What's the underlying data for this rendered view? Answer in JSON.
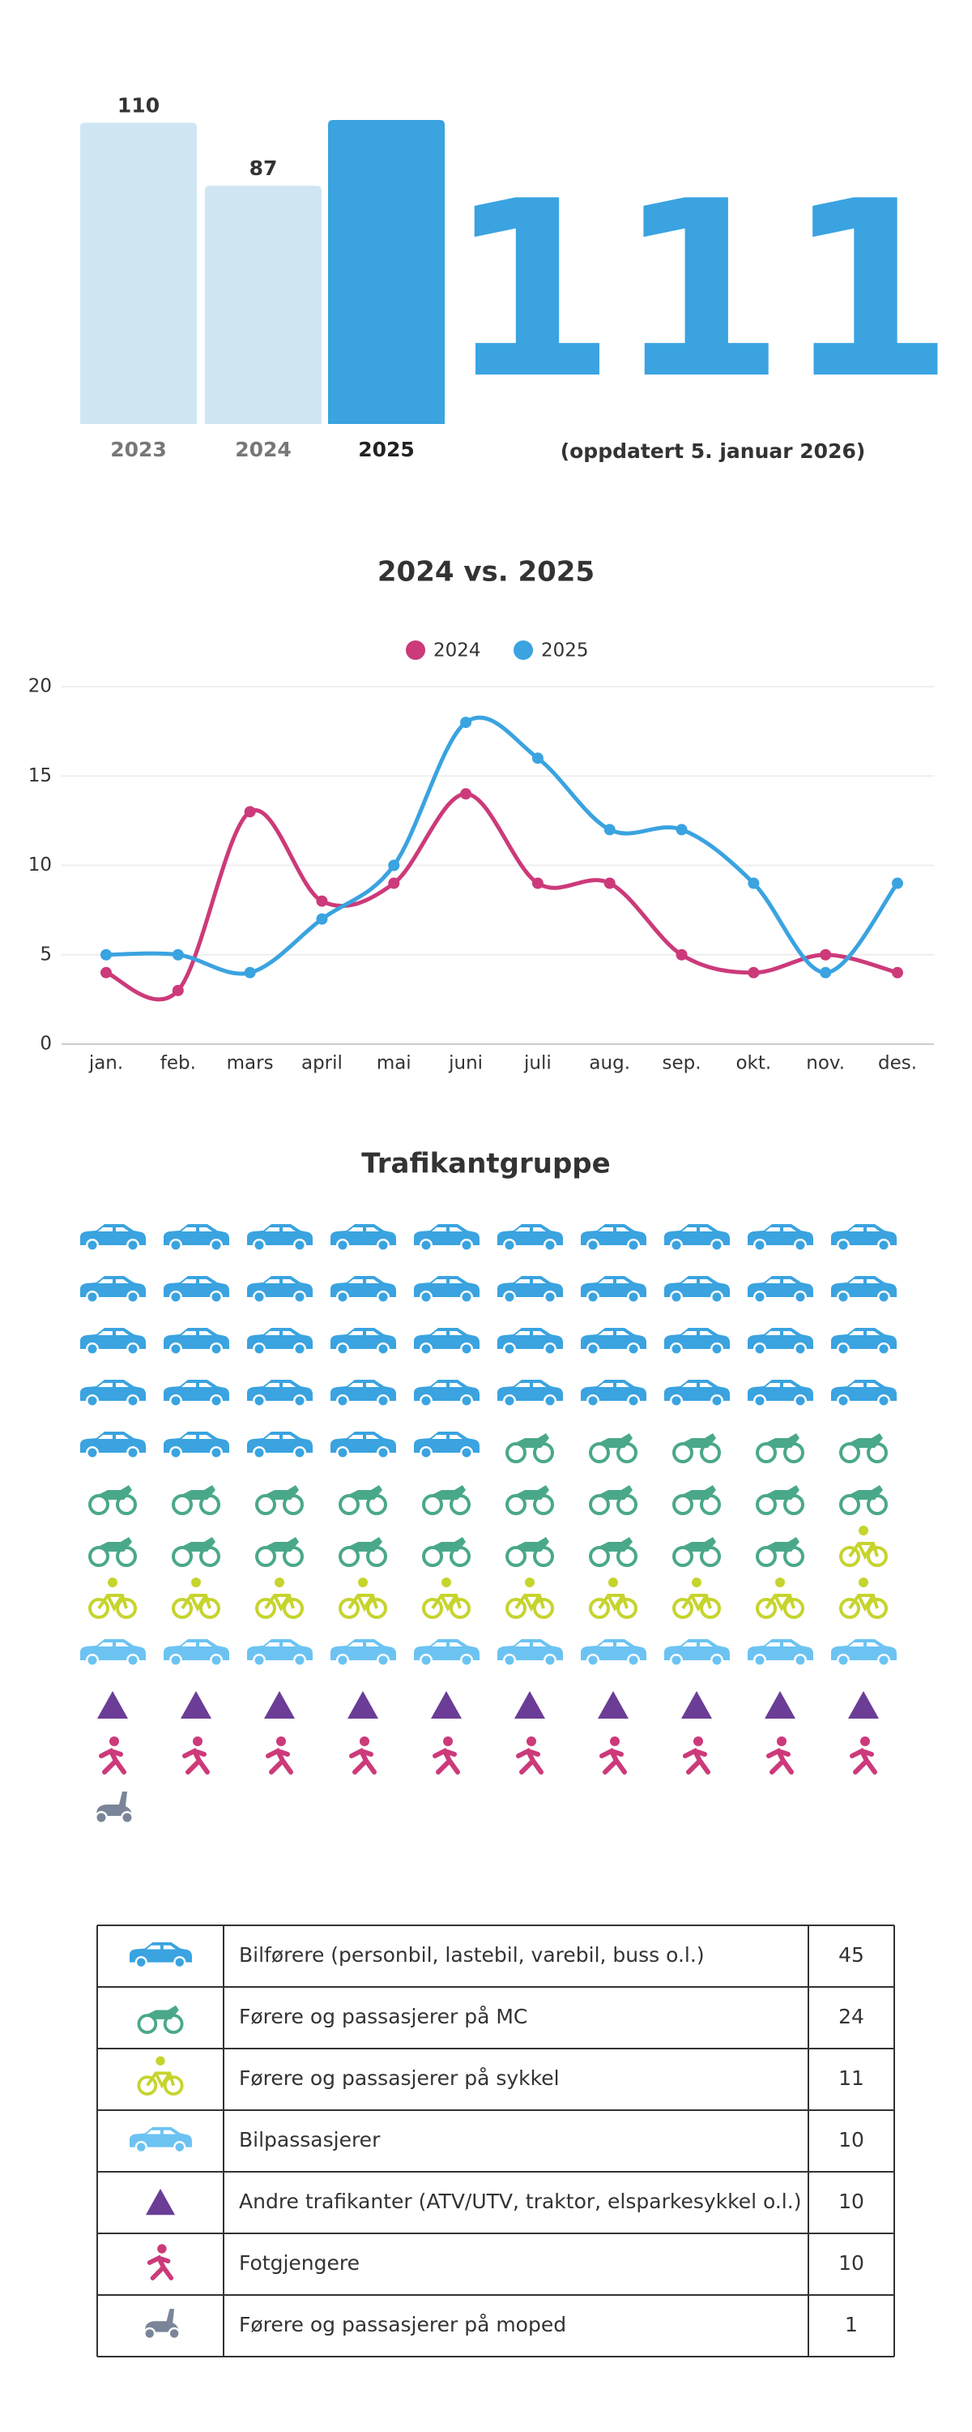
{
  "chart_data": [
    {
      "type": "bar",
      "categories": [
        "2023",
        "2024",
        "2025"
      ],
      "values": [
        110,
        87,
        111
      ],
      "value_labels": [
        "110",
        "87",
        null
      ],
      "colors": [
        "#cfe6f3",
        "#cfe6f3",
        "#3aa3e0"
      ]
    },
    {
      "type": "line",
      "title": "2024 vs. 2025",
      "categories": [
        "jan.",
        "feb.",
        "mars",
        "april",
        "mai",
        "juni",
        "juli",
        "aug.",
        "sep.",
        "okt.",
        "nov.",
        "des."
      ],
      "series": [
        {
          "name": "2024",
          "color": "#cc3a7a",
          "values": [
            4,
            3,
            13,
            8,
            9,
            14,
            9,
            9,
            5,
            4,
            5,
            4
          ]
        },
        {
          "name": "2025",
          "color": "#3aa3e0",
          "values": [
            5,
            5,
            4,
            7,
            10,
            18,
            16,
            12,
            12,
            9,
            4,
            9
          ]
        }
      ],
      "ylim": [
        0,
        20
      ],
      "yticks": [
        0,
        5,
        10,
        15,
        20
      ],
      "grid": true,
      "legend": "top"
    }
  ],
  "headline": {
    "number": "111",
    "note": "(oppdatert 5. januar 2026)"
  },
  "groups": {
    "title": "Trafikantgruppe",
    "per_row": 10,
    "rows": [
      {
        "icon": "car",
        "color": "#3aa3e0",
        "label": "Bilførere (personbil, lastebil, varebil, buss o.l.)",
        "count": 45
      },
      {
        "icon": "mc",
        "color": "#4aa88a",
        "label": "Førere og passasjerer på MC",
        "count": 24
      },
      {
        "icon": "bike",
        "color": "#c6d42e",
        "label": "Førere og passasjerer på sykkel",
        "count": 11
      },
      {
        "icon": "car",
        "color": "#6cc3f2",
        "label": "Bilpassasjerer",
        "count": 10
      },
      {
        "icon": "triangle",
        "color": "#6b3d96",
        "label": "Andre trafikanter (ATV/UTV, traktor, elsparkesykkel o.l.)",
        "count": 10
      },
      {
        "icon": "walker",
        "color": "#cc3a7a",
        "label": "Fotgjengere",
        "count": 10
      },
      {
        "icon": "moped",
        "color": "#7b8599",
        "label": "Førere og passasjerer på moped",
        "count": 1
      }
    ]
  }
}
